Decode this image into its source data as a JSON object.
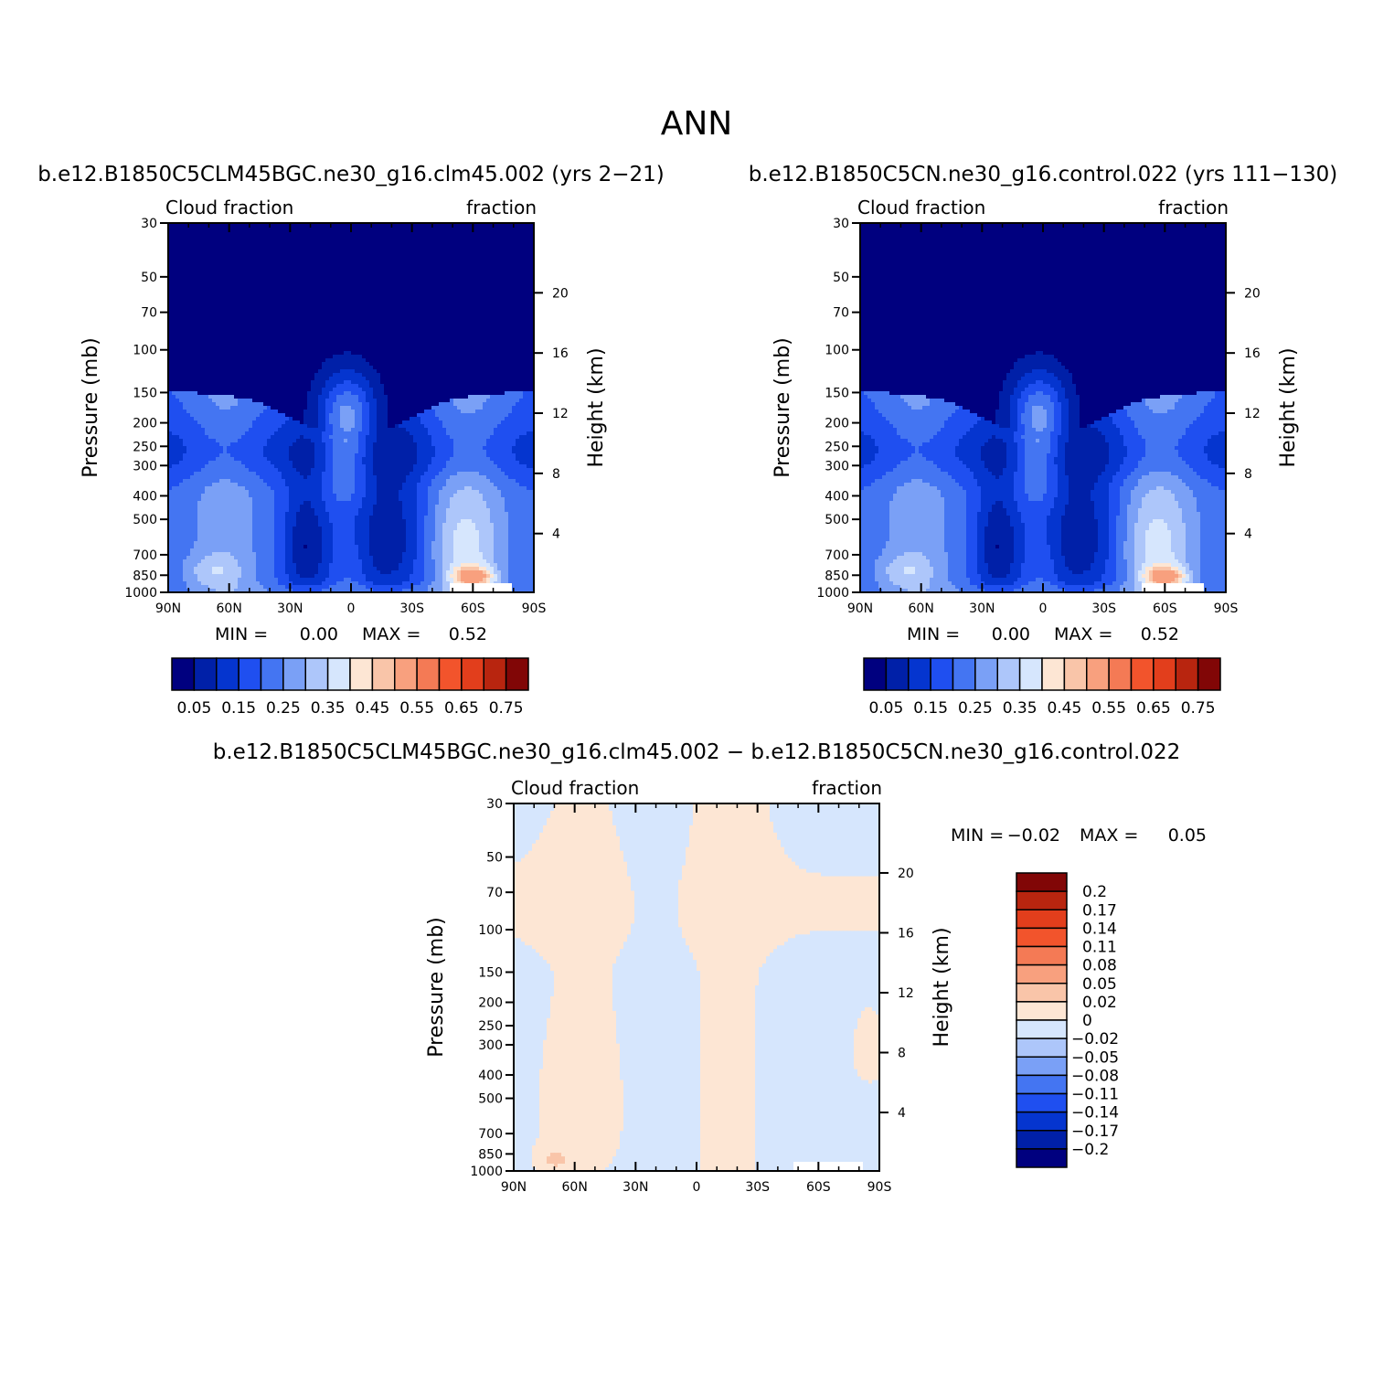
{
  "title": "ANN",
  "colors": {
    "main_scale": [
      "#00007f",
      "#0020a8",
      "#0535cf",
      "#1f4ff0",
      "#4475f2",
      "#7aa0f6",
      "#adc6fa",
      "#d6e6fd",
      "#fde6d4",
      "#f9c5a9",
      "#f8a07e",
      "#f47a55",
      "#f2542c",
      "#e23e1c",
      "#b8250f",
      "#810606"
    ],
    "diff_scale": [
      "#00007f",
      "#0020a8",
      "#0535cf",
      "#1f4ff0",
      "#4475f2",
      "#7aa0f6",
      "#adc6fa",
      "#d6e6fd",
      "#fde6d4",
      "#f9c5a9",
      "#f8a07e",
      "#f47a55",
      "#f2542c",
      "#e23e1c",
      "#b8250f",
      "#810606"
    ],
    "missing": "#ffffff"
  },
  "chart_data": [
    {
      "type": "heatmap",
      "id": "panel1",
      "subtitle": "b.e12.B1850C5CLM45BGC.ne30_g16.clm45.002 (yrs 2-21)",
      "left_label": "Cloud fraction",
      "right_label": "fraction",
      "ylabel": "Pressure (mb)",
      "y2label": "Height (km)",
      "xticks": [
        "90N",
        "60N",
        "30N",
        "0",
        "30S",
        "60S",
        "90S"
      ],
      "xlim": [
        90,
        -90
      ],
      "yticks": [
        30,
        50,
        70,
        100,
        150,
        200,
        250,
        300,
        400,
        500,
        700,
        850,
        1000
      ],
      "ylim": [
        30,
        1000
      ],
      "y2ticks": [
        20,
        16,
        12,
        8,
        4
      ],
      "min_label": "MIN =",
      "min_value": "0.00",
      "max_label": "MAX =",
      "max_value": "0.52",
      "min": 0.0,
      "max": 0.52,
      "colorbar_labels": [
        "0.05",
        "0.15",
        "0.25",
        "0.35",
        "0.45",
        "0.55",
        "0.65",
        "0.75"
      ],
      "levels": [
        0.05,
        0.1,
        0.15,
        0.2,
        0.25,
        0.3,
        0.35,
        0.4,
        0.45,
        0.5,
        0.55,
        0.6,
        0.65,
        0.7,
        0.75
      ]
    },
    {
      "type": "heatmap",
      "id": "panel2",
      "subtitle": "b.e12.B1850C5CN.ne30_g16.control.022 (yrs 111-130)",
      "left_label": "Cloud fraction",
      "right_label": "fraction",
      "ylabel": "Pressure (mb)",
      "y2label": "Height (km)",
      "xticks": [
        "90N",
        "60N",
        "30N",
        "0",
        "30S",
        "60S",
        "90S"
      ],
      "xlim": [
        90,
        -90
      ],
      "yticks": [
        30,
        50,
        70,
        100,
        150,
        200,
        250,
        300,
        400,
        500,
        700,
        850,
        1000
      ],
      "ylim": [
        30,
        1000
      ],
      "y2ticks": [
        20,
        16,
        12,
        8,
        4
      ],
      "min_label": "MIN =",
      "min_value": "0.00",
      "max_label": "MAX =",
      "max_value": "0.52",
      "min": 0.0,
      "max": 0.52,
      "colorbar_labels": [
        "0.05",
        "0.15",
        "0.25",
        "0.35",
        "0.45",
        "0.55",
        "0.65",
        "0.75"
      ],
      "levels": [
        0.05,
        0.1,
        0.15,
        0.2,
        0.25,
        0.3,
        0.35,
        0.4,
        0.45,
        0.5,
        0.55,
        0.6,
        0.65,
        0.7,
        0.75
      ]
    },
    {
      "type": "heatmap",
      "id": "panel3",
      "subtitle": "b.e12.B1850C5CLM45BGC.ne30_g16.clm45.002 - b.e12.B1850C5CN.ne30_g16.control.022",
      "left_label": "Cloud fraction",
      "right_label": "fraction",
      "ylabel": "Pressure (mb)",
      "y2label": "Height (km)",
      "xticks": [
        "90N",
        "60N",
        "30N",
        "0",
        "30S",
        "60S",
        "90S"
      ],
      "xlim": [
        90,
        -90
      ],
      "yticks": [
        30,
        50,
        70,
        100,
        150,
        200,
        250,
        300,
        400,
        500,
        700,
        850,
        1000
      ],
      "ylim": [
        30,
        1000
      ],
      "y2ticks": [
        20,
        16,
        12,
        8,
        4
      ],
      "min_label": "MIN =",
      "min_value": "-0.02",
      "max_label": "MAX =",
      "max_value": "0.05",
      "min": -0.02,
      "max": 0.05,
      "colorbar_labels": [
        "0.2",
        "0.17",
        "0.14",
        "0.11",
        "0.08",
        "0.05",
        "0.02",
        "0",
        "-0.02",
        "-0.05",
        "-0.08",
        "-0.11",
        "-0.14",
        "-0.17",
        "-0.2"
      ],
      "levels": [
        -0.2,
        -0.17,
        -0.14,
        -0.11,
        -0.08,
        -0.05,
        -0.02,
        0,
        0.02,
        0.05,
        0.08,
        0.11,
        0.14,
        0.17,
        0.2
      ]
    }
  ]
}
